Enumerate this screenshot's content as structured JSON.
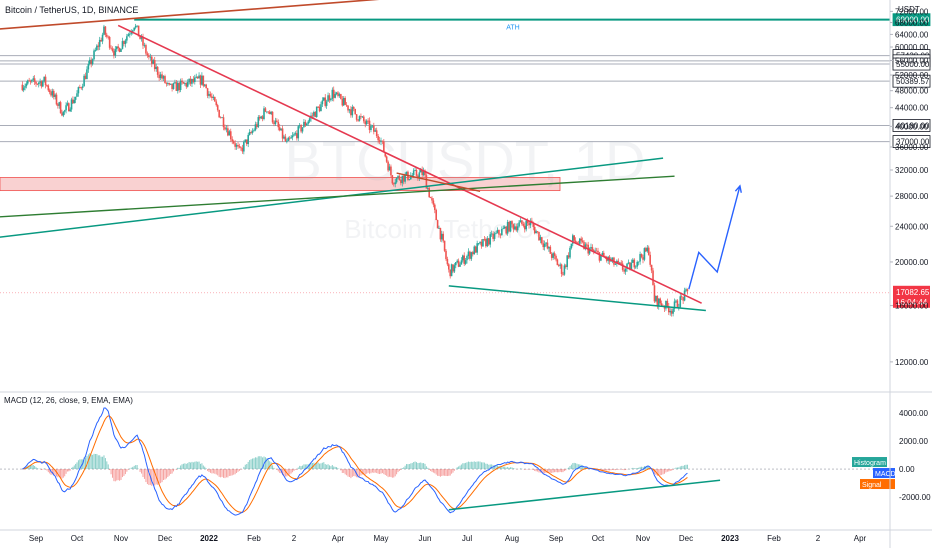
{
  "header": {
    "symbol_title": "Bitcoin / TetherUS, 1D, BINANCE",
    "currency": "USDT",
    "watermark_main": "BTCUSDT, 1D",
    "watermark_sub": "Bitcoin / TetherUS"
  },
  "colors": {
    "bull": "#26a69a",
    "bear": "#ef5350",
    "macd": "#2962ff",
    "signal": "#ff6d00",
    "hist_pos": "#26a69a",
    "hist_neg": "#ef5350",
    "trend_red": "#e53950",
    "trend_green": "#089981",
    "dark_green": "#2e7d32",
    "brown": "#c04a2b",
    "projection": "#2962ff",
    "resistance_fill": "#f7c6c6",
    "price_badge": "#f23645"
  },
  "chart_data": [
    {
      "type": "candlestick",
      "title": "Bitcoin / TetherUS, 1D, BINANCE",
      "x_ticks": [
        "Sep",
        "Oct",
        "Nov",
        "Dec",
        "2022",
        "Feb",
        "2",
        "Apr",
        "May",
        "Jun",
        "Jul",
        "Aug",
        "Sep",
        "Oct",
        "Nov",
        "Dec",
        "2023",
        "Feb",
        "2",
        "Apr"
      ],
      "y_ticks": [
        72000,
        68000,
        64000,
        60000,
        56000,
        52000,
        48000,
        44000,
        40000,
        36000,
        32000,
        28000,
        24000,
        20000,
        16000,
        12000
      ],
      "y_unit": "USDT",
      "ylim": [
        10500,
        74000
      ],
      "scale": "log",
      "price_levels": [
        {
          "value": 69000,
          "label": "69000.00",
          "note": "ATH"
        },
        {
          "value": 57430,
          "label": "57430.00"
        },
        {
          "value": 55909.67,
          "label": "55909.67"
        },
        {
          "value": 55000,
          "label": "55000.00"
        },
        {
          "value": 50389.57,
          "label": "50389.57"
        },
        {
          "value": 40180,
          "label": "40180.00"
        },
        {
          "value": 37000,
          "label": "37000.00"
        }
      ],
      "resistance_zone": [
        28800,
        30800
      ],
      "last_price": {
        "value": 17082.65,
        "label": "17082.65",
        "countdown": "16:04:44"
      },
      "series": [
        {
          "name": "",
          "anchors": [
            [
              "2021-08-22",
              49500
            ],
            [
              "2021-09-07",
              50400
            ],
            [
              "2021-09-21",
              42800
            ],
            [
              "2021-10-01",
              47000
            ],
            [
              "2021-10-20",
              65000
            ],
            [
              "2021-10-28",
              58000
            ],
            [
              "2021-11-10",
              67500
            ],
            [
              "2021-11-20",
              56500
            ],
            [
              "2021-12-04",
              48500
            ],
            [
              "2021-12-27",
              50800
            ],
            [
              "2022-01-22",
              35000
            ],
            [
              "2022-02-10",
              44000
            ],
            [
              "2022-02-24",
              36500
            ],
            [
              "2022-03-28",
              47500
            ],
            [
              "2022-04-30",
              38000
            ],
            [
              "2022-05-09",
              30500
            ],
            [
              "2022-05-31",
              31500
            ],
            [
              "2022-06-13",
              22500
            ],
            [
              "2022-06-18",
              19000
            ],
            [
              "2022-07-08",
              21500
            ],
            [
              "2022-07-30",
              24000
            ],
            [
              "2022-08-14",
              24400
            ],
            [
              "2022-09-06",
              19000
            ],
            [
              "2022-09-13",
              22400
            ],
            [
              "2022-10-20",
              19200
            ],
            [
              "2022-11-05",
              21300
            ],
            [
              "2022-11-09",
              16500
            ],
            [
              "2022-11-21",
              15700
            ],
            [
              "2022-12-02",
              17083
            ]
          ]
        }
      ]
    },
    {
      "type": "line",
      "title": "MACD (12, 26, close, 9, EMA, EMA)",
      "y_ticks": [
        4000,
        2000,
        0,
        -2000
      ],
      "ylim": [
        -4200,
        5200
      ],
      "series": [
        {
          "name": "Histogram"
        },
        {
          "name": "MACD"
        },
        {
          "name": "Signal"
        }
      ]
    }
  ],
  "annotations": {
    "ath_label": "ATH"
  }
}
